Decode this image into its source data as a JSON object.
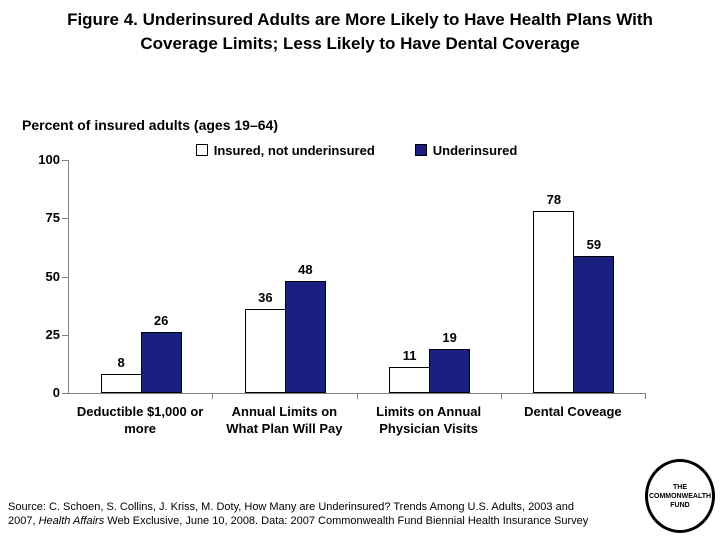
{
  "slide": {
    "title_line1": "Figure 4. Underinsured Adults are More Likely to Have Health Plans With",
    "title_line2": "Coverage Limits; Less Likely to Have Dental Coverage",
    "subtitle": "Percent of insured adults (ages 19–64)",
    "source_line1": "Source: C. Schoen, S. Collins, J. Kriss, M. Doty, How Many are Underinsured? Trends Among U.S. Adults, 2003 and",
    "source_line2_pre": "2007, ",
    "source_line2_italic": "Health Affairs",
    "source_line2_post": " Web Exclusive, June 10, 2008. Data: 2007 Commonwealth Fund Biennial Health Insurance Survey",
    "logo_line1": "THE",
    "logo_line2": "COMMONWEALTH",
    "logo_line3": "FUND"
  },
  "colors": {
    "background": "#ffffff",
    "text": "#000000",
    "axis": "#808080",
    "insured_fill": "#ffffff",
    "underinsured_fill": "#1a2080",
    "bar_outline": "#000000"
  },
  "chart_data": {
    "type": "bar",
    "title": "",
    "xlabel": "",
    "ylabel": "Percent of insured adults (ages 19–64)",
    "categories": [
      "Deductible $1,000 or\nmore",
      "Annual Limits on\nWhat Plan Will Pay",
      "Limits on Annual\nPhysician Visits",
      "Dental Coveage"
    ],
    "series": [
      {
        "name": "Insured, not underinsured",
        "values": [
          8,
          36,
          11,
          78
        ],
        "fill": "#ffffff"
      },
      {
        "name": "Underinsured",
        "values": [
          26,
          48,
          19,
          59
        ],
        "fill": "#1a2080"
      }
    ],
    "ylim": [
      0,
      100
    ],
    "yticks": [
      100,
      75,
      50,
      25,
      0
    ],
    "grid": false,
    "legend_position": "top",
    "bar_value_labels": true
  }
}
